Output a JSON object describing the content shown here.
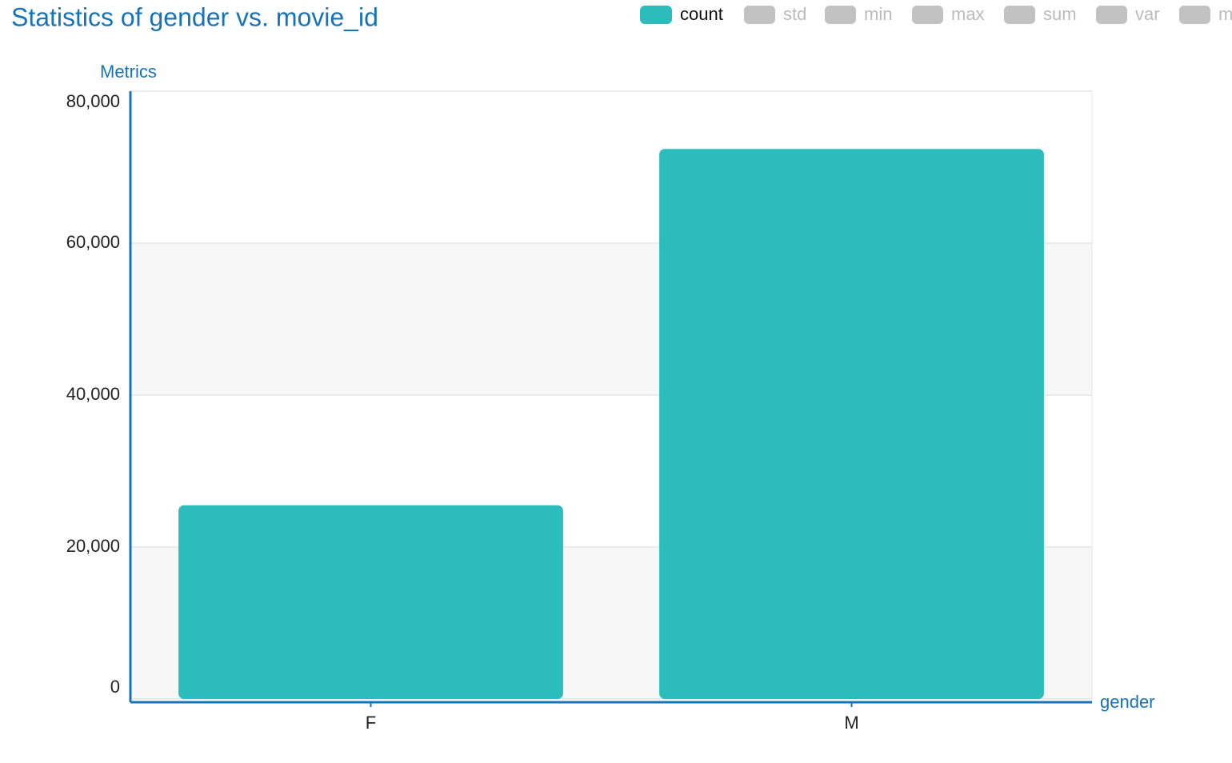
{
  "chart_data": {
    "type": "bar",
    "title": "Statistics of gender vs. movie_id",
    "y_label": "Metrics",
    "x_label": "gender",
    "categories": [
      "F",
      "M"
    ],
    "series": [
      {
        "name": "count",
        "color": "#2dbcbc",
        "values": [
          25500,
          72400
        ]
      }
    ],
    "legend_inactive": [
      "std",
      "min",
      "max",
      "sum",
      "var",
      "m"
    ],
    "ylim": [
      0,
      80000
    ],
    "yticks": [
      0,
      {
        "value": 20000,
        "label": "20,000"
      },
      {
        "value": 40000,
        "label": "40,000"
      },
      {
        "value": 60000,
        "label": "60,000"
      },
      {
        "value": 80000,
        "label": "80,000"
      }
    ],
    "grid": true
  }
}
